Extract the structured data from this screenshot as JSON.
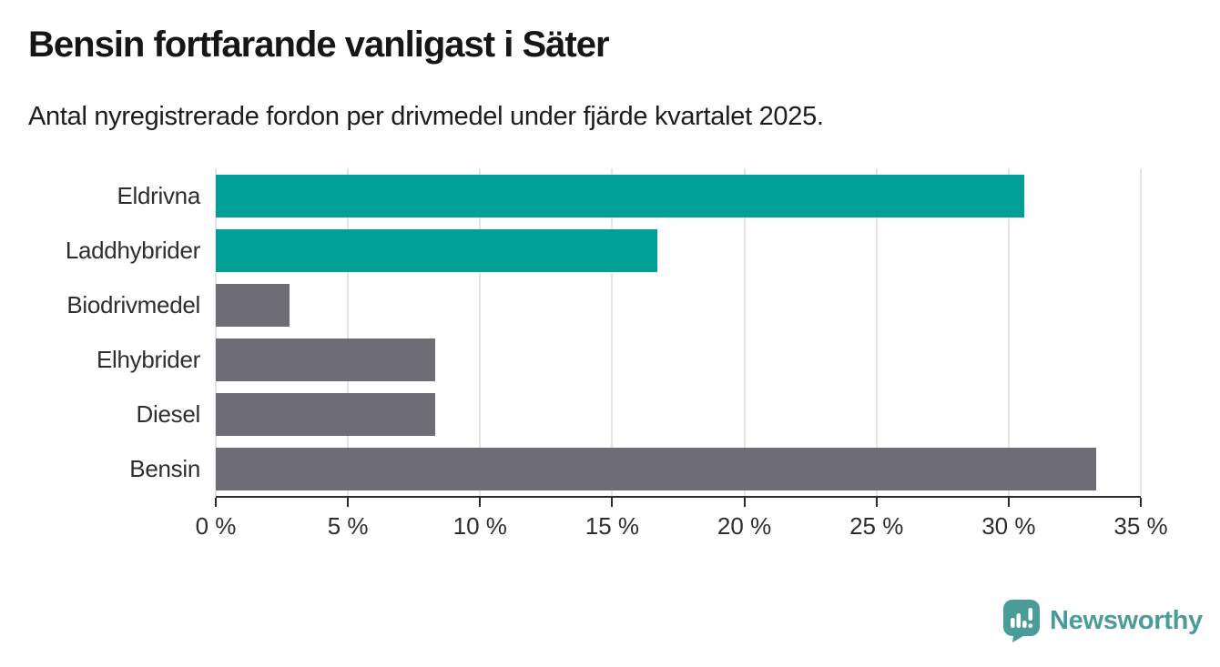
{
  "chart_data": {
    "type": "bar",
    "orientation": "horizontal",
    "title": "Bensin fortfarande vanligast i Säter",
    "subtitle": "Antal nyregistrerade fordon per drivmedel under fjärde kvartalet 2025.",
    "categories": [
      "Eldrivna",
      "Laddhybrider",
      "Biodrivmedel",
      "Elhybrider",
      "Diesel",
      "Bensin"
    ],
    "values": [
      30.6,
      16.7,
      2.8,
      8.3,
      8.3,
      33.3
    ],
    "unit": "%",
    "xlabel": "",
    "ylabel": "",
    "xlim": [
      0,
      35
    ],
    "ticks": [
      0,
      5,
      10,
      15,
      20,
      25,
      30,
      35
    ],
    "tick_labels": [
      "0 %",
      "5 %",
      "10 %",
      "15 %",
      "20 %",
      "25 %",
      "30 %",
      "35 %"
    ],
    "bar_colors": [
      "#00a096",
      "#00a096",
      "#6e6d76",
      "#6e6d76",
      "#6e6d76",
      "#6e6d76"
    ],
    "grid": true,
    "legend": false
  },
  "colors": {
    "accent_teal": "#00a096",
    "bar_gray": "#6e6d76",
    "gridline": "#e4e4e4",
    "axis": "#2b2b2b",
    "title_text": "#161616",
    "label_text": "#2e2e2e",
    "brand_teal": "#4a9c98"
  },
  "footer": {
    "brand": "Newsworthy",
    "logo_icon": "speech-bubble-bar-chart-icon"
  }
}
